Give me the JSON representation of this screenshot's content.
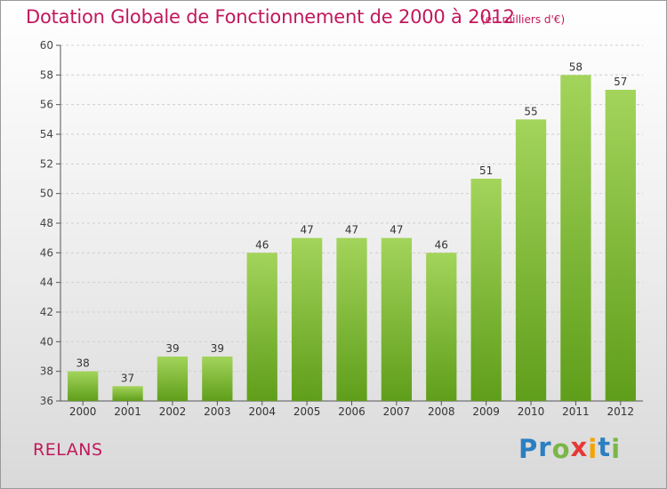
{
  "header": {
    "title": "Dotation Globale de Fonctionnement de 2000 à 2012",
    "unit": "(en milliers d'€)"
  },
  "footer": {
    "town": "RELANS",
    "brand_letters": [
      "P",
      "r",
      "o",
      "x",
      "i",
      "t",
      "i"
    ],
    "brand_colors": [
      "#2b7fc1",
      "#2b7fc1",
      "#7ab648",
      "#e53935",
      "#f4a300",
      "#2b7fc1",
      "#7ab648"
    ]
  },
  "chart_data": {
    "type": "bar",
    "categories": [
      "2000",
      "2001",
      "2002",
      "2003",
      "2004",
      "2005",
      "2006",
      "2007",
      "2008",
      "2009",
      "2010",
      "2011",
      "2012"
    ],
    "values": [
      38,
      37,
      39,
      39,
      46,
      47,
      47,
      47,
      46,
      51,
      55,
      58,
      57
    ],
    "ylim": [
      36,
      60
    ],
    "yticks": [
      36,
      38,
      40,
      42,
      44,
      46,
      48,
      50,
      52,
      54,
      56,
      58,
      60
    ],
    "grid": true,
    "bar_color_top": "#a3d45b",
    "bar_color_bottom": "#5f9e1a"
  }
}
